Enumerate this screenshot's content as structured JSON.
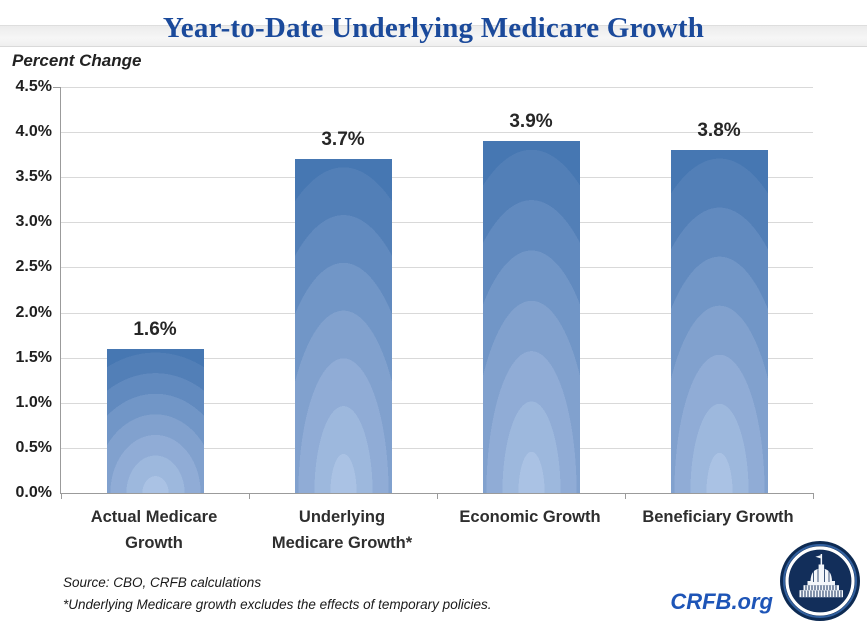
{
  "chart_data": {
    "type": "bar",
    "title": "Year-to-Date Underlying Medicare Growth",
    "ylabel": "Percent Change",
    "xlabel": "",
    "categories": [
      "Actual Medicare Growth",
      "Underlying Medicare Growth*",
      "Economic Growth",
      "Beneficiary Growth"
    ],
    "values": [
      1.6,
      3.7,
      3.9,
      3.8
    ],
    "data_labels": [
      "1.6%",
      "3.7%",
      "3.9%",
      "3.8%"
    ],
    "ylim": [
      0,
      4.5
    ],
    "ytick_step": 0.5,
    "yticks": [
      "4.5%",
      "4.0%",
      "3.5%",
      "3.0%",
      "2.5%",
      "2.0%",
      "1.5%",
      "1.0%",
      "0.5%",
      "0.0%"
    ],
    "grid": true,
    "legend": false,
    "bar_gradient": "vertical radial fade, dark top to light bottom"
  },
  "footnotes": {
    "source": "Source: CBO, CRFB calculations",
    "note": "*Underlying Medicare growth excludes the effects of temporary policies."
  },
  "branding": {
    "site": "CRFB.org",
    "logo": "capitol-dome-roundel"
  },
  "colors": {
    "title_blue": "#1b4a9b",
    "bar_top": "#3c6ead",
    "bar_bottom": "#aac2e4",
    "gridline": "#d9d9d9",
    "axis": "#9b9b9b",
    "label_text": "#262626",
    "crfb_blue": "#1e55b7",
    "logo_navy": "#0d2a52"
  }
}
